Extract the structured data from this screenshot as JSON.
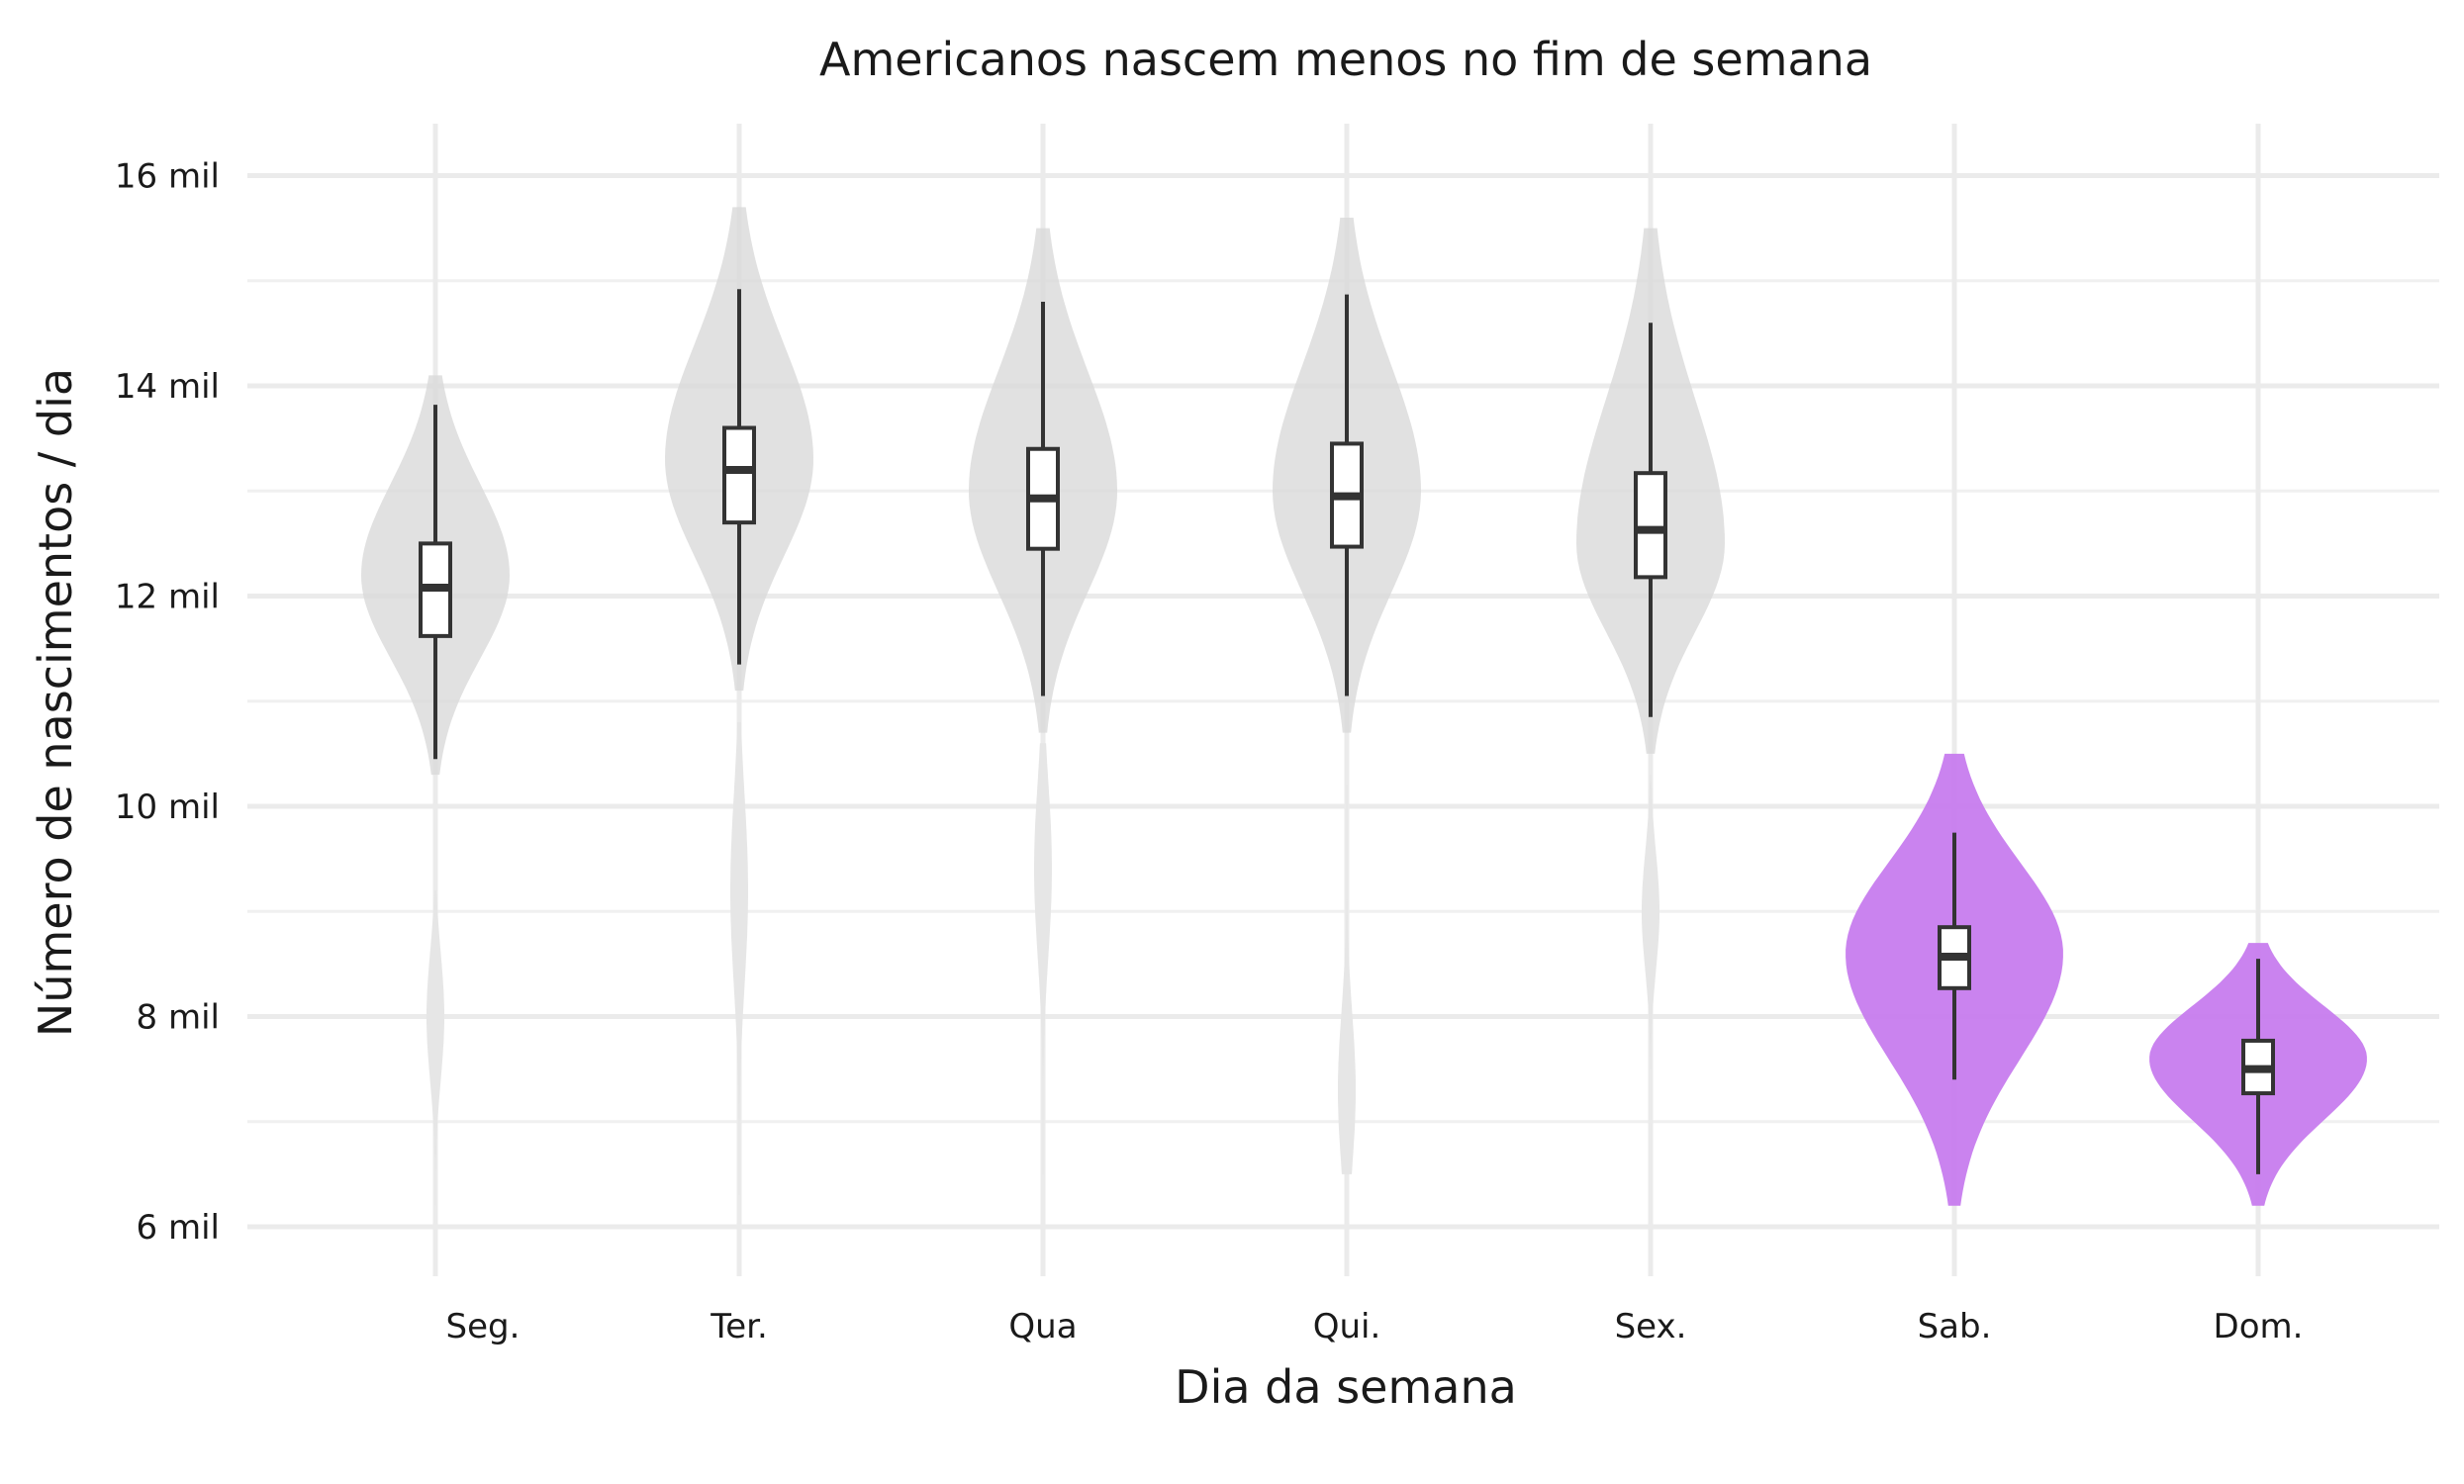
{
  "chart_data": {
    "type": "violin",
    "title": "Americanos nascem menos no fim de semana",
    "xlabel": "Dia da semana",
    "ylabel": "Número de nascimentos / dia",
    "categories": [
      "Seg.",
      "Ter.",
      "Qua",
      "Qui.",
      "Sex.",
      "Sab.",
      "Dom."
    ],
    "y_ticks": [
      6,
      8,
      10,
      12,
      14,
      16
    ],
    "y_tick_labels": [
      "6 mil",
      "8 mil",
      "10 mil",
      "12 mil",
      "14 mil",
      "16 mil"
    ],
    "y_unit": "mil",
    "ylim": [
      5.5,
      16.5
    ],
    "grid": true,
    "highlight_color": "#c77cee",
    "base_color": "#d9d9d9",
    "series": [
      {
        "category": "Seg.",
        "highlight": false,
        "whisker_low": 10.45,
        "q1": 11.62,
        "median": 12.08,
        "q3": 12.5,
        "whisker_high": 13.82,
        "violin_min": 10.3,
        "violin_max": 14.1,
        "widest_at": 12.2,
        "low_cluster": {
          "min": 6.2,
          "max": 9.2,
          "center": 8.0
        }
      },
      {
        "category": "Ter.",
        "highlight": false,
        "whisker_low": 11.35,
        "q1": 12.7,
        "median": 13.2,
        "q3": 13.6,
        "whisker_high": 14.92,
        "violin_min": 11.1,
        "violin_max": 15.7,
        "widest_at": 13.3,
        "low_cluster": {
          "min": 6.3,
          "max": 10.8,
          "center": 9.2
        }
      },
      {
        "category": "Qua",
        "highlight": false,
        "whisker_low": 11.05,
        "q1": 12.45,
        "median": 12.93,
        "q3": 13.4,
        "whisker_high": 14.8,
        "violin_min": 10.7,
        "violin_max": 15.5,
        "widest_at": 13.0,
        "low_cluster": {
          "min": 6.5,
          "max": 10.6,
          "center": 9.4
        }
      },
      {
        "category": "Qui.",
        "highlight": false,
        "whisker_low": 11.05,
        "q1": 12.47,
        "median": 12.95,
        "q3": 13.45,
        "whisker_high": 14.87,
        "violin_min": 10.7,
        "violin_max": 15.6,
        "widest_at": 13.0,
        "low_cluster": {
          "min": 6.5,
          "max": 10.2,
          "center": 7.3
        }
      },
      {
        "category": "Sex.",
        "highlight": false,
        "whisker_low": 10.85,
        "q1": 12.18,
        "median": 12.63,
        "q3": 13.17,
        "whisker_high": 14.6,
        "violin_min": 10.5,
        "violin_max": 15.5,
        "widest_at": 12.5,
        "low_cluster": {
          "min": 7.5,
          "max": 10.3,
          "center": 9.0
        }
      },
      {
        "category": "Sab.",
        "highlight": true,
        "whisker_low": 7.4,
        "q1": 8.27,
        "median": 8.57,
        "q3": 8.85,
        "whisker_high": 9.75,
        "violin_min": 6.2,
        "violin_max": 10.5,
        "widest_at": 8.6
      },
      {
        "category": "Dom.",
        "highlight": true,
        "whisker_low": 6.5,
        "q1": 7.27,
        "median": 7.5,
        "q3": 7.77,
        "whisker_high": 8.55,
        "violin_min": 6.2,
        "violin_max": 8.7,
        "widest_at": 7.6
      }
    ]
  }
}
